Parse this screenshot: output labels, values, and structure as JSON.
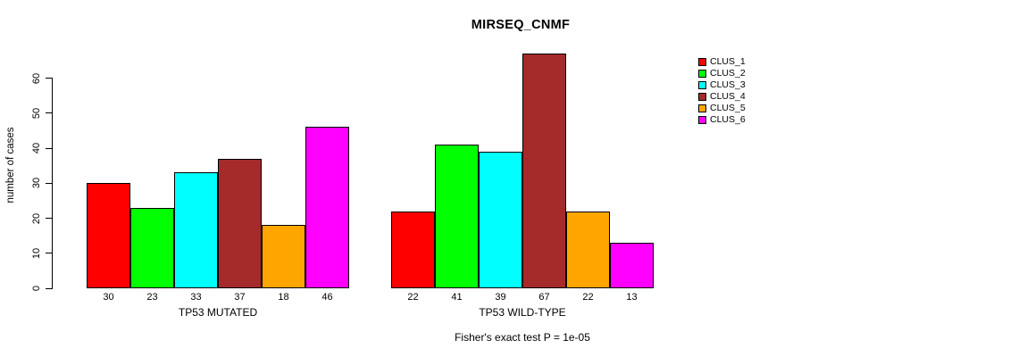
{
  "chart_data": {
    "type": "bar",
    "title": "MIRSEQ_CNMF",
    "subtitle": "Fisher's exact test P = 1e-05",
    "ylabel": "number of cases",
    "xlabel": "",
    "yticks": [
      0,
      10,
      20,
      30,
      40,
      50,
      60
    ],
    "ylim": [
      0,
      67
    ],
    "grid": false,
    "legend_position": "right",
    "clusters": [
      {
        "label": "CLUS_1",
        "color": "#FF0000"
      },
      {
        "label": "CLUS_2",
        "color": "#00FF00"
      },
      {
        "label": "CLUS_3",
        "color": "#00FFFF"
      },
      {
        "label": "CLUS_4",
        "color": "#A52A2A"
      },
      {
        "label": "CLUS_5",
        "color": "#FFA500"
      },
      {
        "label": "CLUS_6",
        "color": "#FF00FF"
      }
    ],
    "groups": [
      {
        "label": "TP53 MUTATED",
        "values": [
          30,
          23,
          33,
          37,
          18,
          46
        ]
      },
      {
        "label": "TP53 WILD-TYPE",
        "values": [
          22,
          41,
          39,
          67,
          22,
          13
        ]
      }
    ]
  }
}
